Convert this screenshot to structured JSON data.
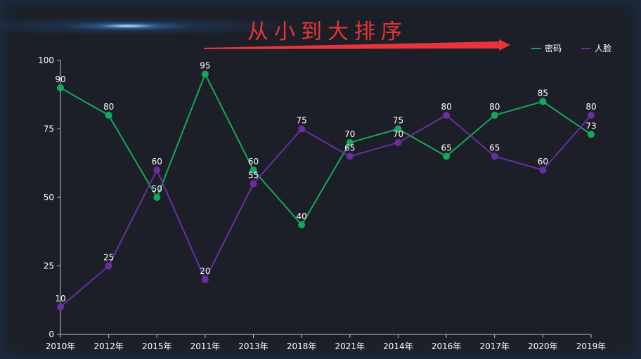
{
  "header": {
    "title": "从小到大排序"
  },
  "colors": {
    "accent_arrow": "#e8343a",
    "mima": "#16a85a",
    "renlian": "#6a2ea0",
    "axis": "#bfbfbf",
    "text": "#ffffff"
  },
  "chart_data": {
    "type": "line",
    "title": "从小到大排序",
    "categories": [
      "2010年",
      "2012年",
      "2015年",
      "2011年",
      "2013年",
      "2018年",
      "2021年",
      "2014年",
      "2016年",
      "2017年",
      "2020年",
      "2019年"
    ],
    "series": [
      {
        "name": "密码",
        "color": "#16a85a",
        "values": [
          90,
          80,
          50,
          95,
          60,
          40,
          70,
          75,
          65,
          80,
          85,
          73
        ]
      },
      {
        "name": "人脸",
        "color": "#6a2ea0",
        "values": [
          10,
          25,
          60,
          20,
          55,
          75,
          65,
          70,
          80,
          65,
          60,
          80
        ]
      }
    ],
    "ylim": [
      0,
      100
    ],
    "yticks": [
      0,
      25,
      50,
      75,
      100
    ],
    "grid": false,
    "legend": "top-right",
    "data_labels": true
  }
}
